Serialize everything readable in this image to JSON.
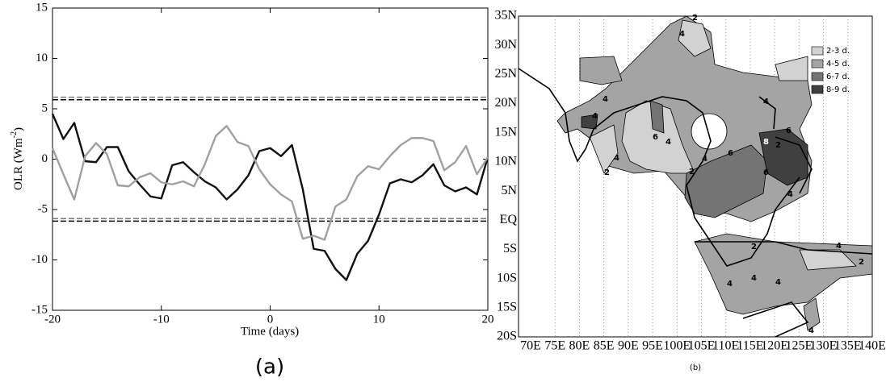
{
  "chart_data": {
    "type": "line",
    "x_label": "Time (days)",
    "y_label": [
      "OLR (Wm",
      "-2",
      ")"
    ],
    "caption": "(a)",
    "x": [
      -20,
      -19,
      -18,
      -17,
      -16,
      -15,
      -14,
      -13,
      -12,
      -11,
      -10,
      -9,
      -8,
      -7,
      -6,
      -5,
      -4,
      -3,
      -2,
      -1,
      0,
      1,
      2,
      3,
      4,
      5,
      6,
      7,
      8,
      9,
      10,
      11,
      12,
      13,
      14,
      15,
      16,
      17,
      18,
      19,
      20
    ],
    "series": [
      {
        "color": "#111111",
        "values": [
          4.5,
          2.0,
          3.6,
          -0.2,
          -0.3,
          1.2,
          1.2,
          -1.2,
          -2.5,
          -3.7,
          -3.9,
          -0.6,
          -0.3,
          -1.3,
          -2.2,
          -2.8,
          -4.0,
          -3.0,
          -1.6,
          0.8,
          1.1,
          0.3,
          1.4,
          -3.0,
          -8.9,
          -9.1,
          -10.9,
          -12.0,
          -9.4,
          -8.1,
          -5.5,
          -2.4,
          -2.0,
          -2.3,
          -1.6,
          -0.5,
          -2.6,
          -3.2,
          -2.8,
          -3.5,
          0.2
        ]
      },
      {
        "color": "#a0a0a0",
        "values": [
          1.1,
          -1.5,
          -4.0,
          0.3,
          1.6,
          0.5,
          -2.6,
          -2.7,
          -1.8,
          -1.4,
          -2.3,
          -2.5,
          -2.2,
          -2.7,
          -0.5,
          2.3,
          3.3,
          1.7,
          1.3,
          -1.0,
          -2.5,
          -3.5,
          -4.2,
          -7.9,
          -7.6,
          -8.0,
          -4.7,
          -4.0,
          -1.7,
          -0.7,
          -1.0,
          0.3,
          1.4,
          2.1,
          2.1,
          1.8,
          -1.1,
          -0.3,
          1.3,
          -1.5,
          0.2
        ]
      }
    ],
    "hlines": [
      {
        "value": 6.15,
        "color": "#777777"
      },
      {
        "value": 5.9,
        "color": "#000000"
      },
      {
        "value": -5.9,
        "color": "#777777"
      },
      {
        "value": -6.15,
        "color": "#000000"
      }
    ],
    "xlim": [
      -20,
      20
    ],
    "xticks": [
      -20,
      -10,
      0,
      10,
      20
    ],
    "ylim": [
      -15,
      15
    ],
    "yticks": [
      -15,
      -10,
      -5,
      0,
      5,
      10,
      15
    ]
  },
  "map": {
    "caption": "(b)",
    "lat_labels": [
      "35N",
      "30N",
      "25N",
      "20N",
      "15N",
      "10N",
      "5N",
      "EQ",
      "5S",
      "10S",
      "15S",
      "20S"
    ],
    "lon_labels": [
      "70E",
      "75E",
      "80E",
      "85E",
      "90E",
      "95E",
      "100E",
      "105E",
      "110E",
      "115E",
      "120E",
      "125E",
      "130E",
      "135E",
      "140E"
    ],
    "legend": [
      {
        "label": "2-3 d.",
        "color": "#d2d2d2"
      },
      {
        "label": "4-5 d.",
        "color": "#a4a4a4"
      },
      {
        "label": "6-7 d.",
        "color": "#747474"
      },
      {
        "label": "8-9 d.",
        "color": "#404040"
      }
    ],
    "contour_labels": [
      "2",
      "4",
      "4",
      "4",
      "4",
      "6",
      "4",
      "6",
      "8",
      "2",
      "2",
      "4",
      "2",
      "4",
      "6",
      "6",
      "4",
      "2",
      "4",
      "4",
      "4",
      "4",
      "2",
      "4"
    ]
  }
}
